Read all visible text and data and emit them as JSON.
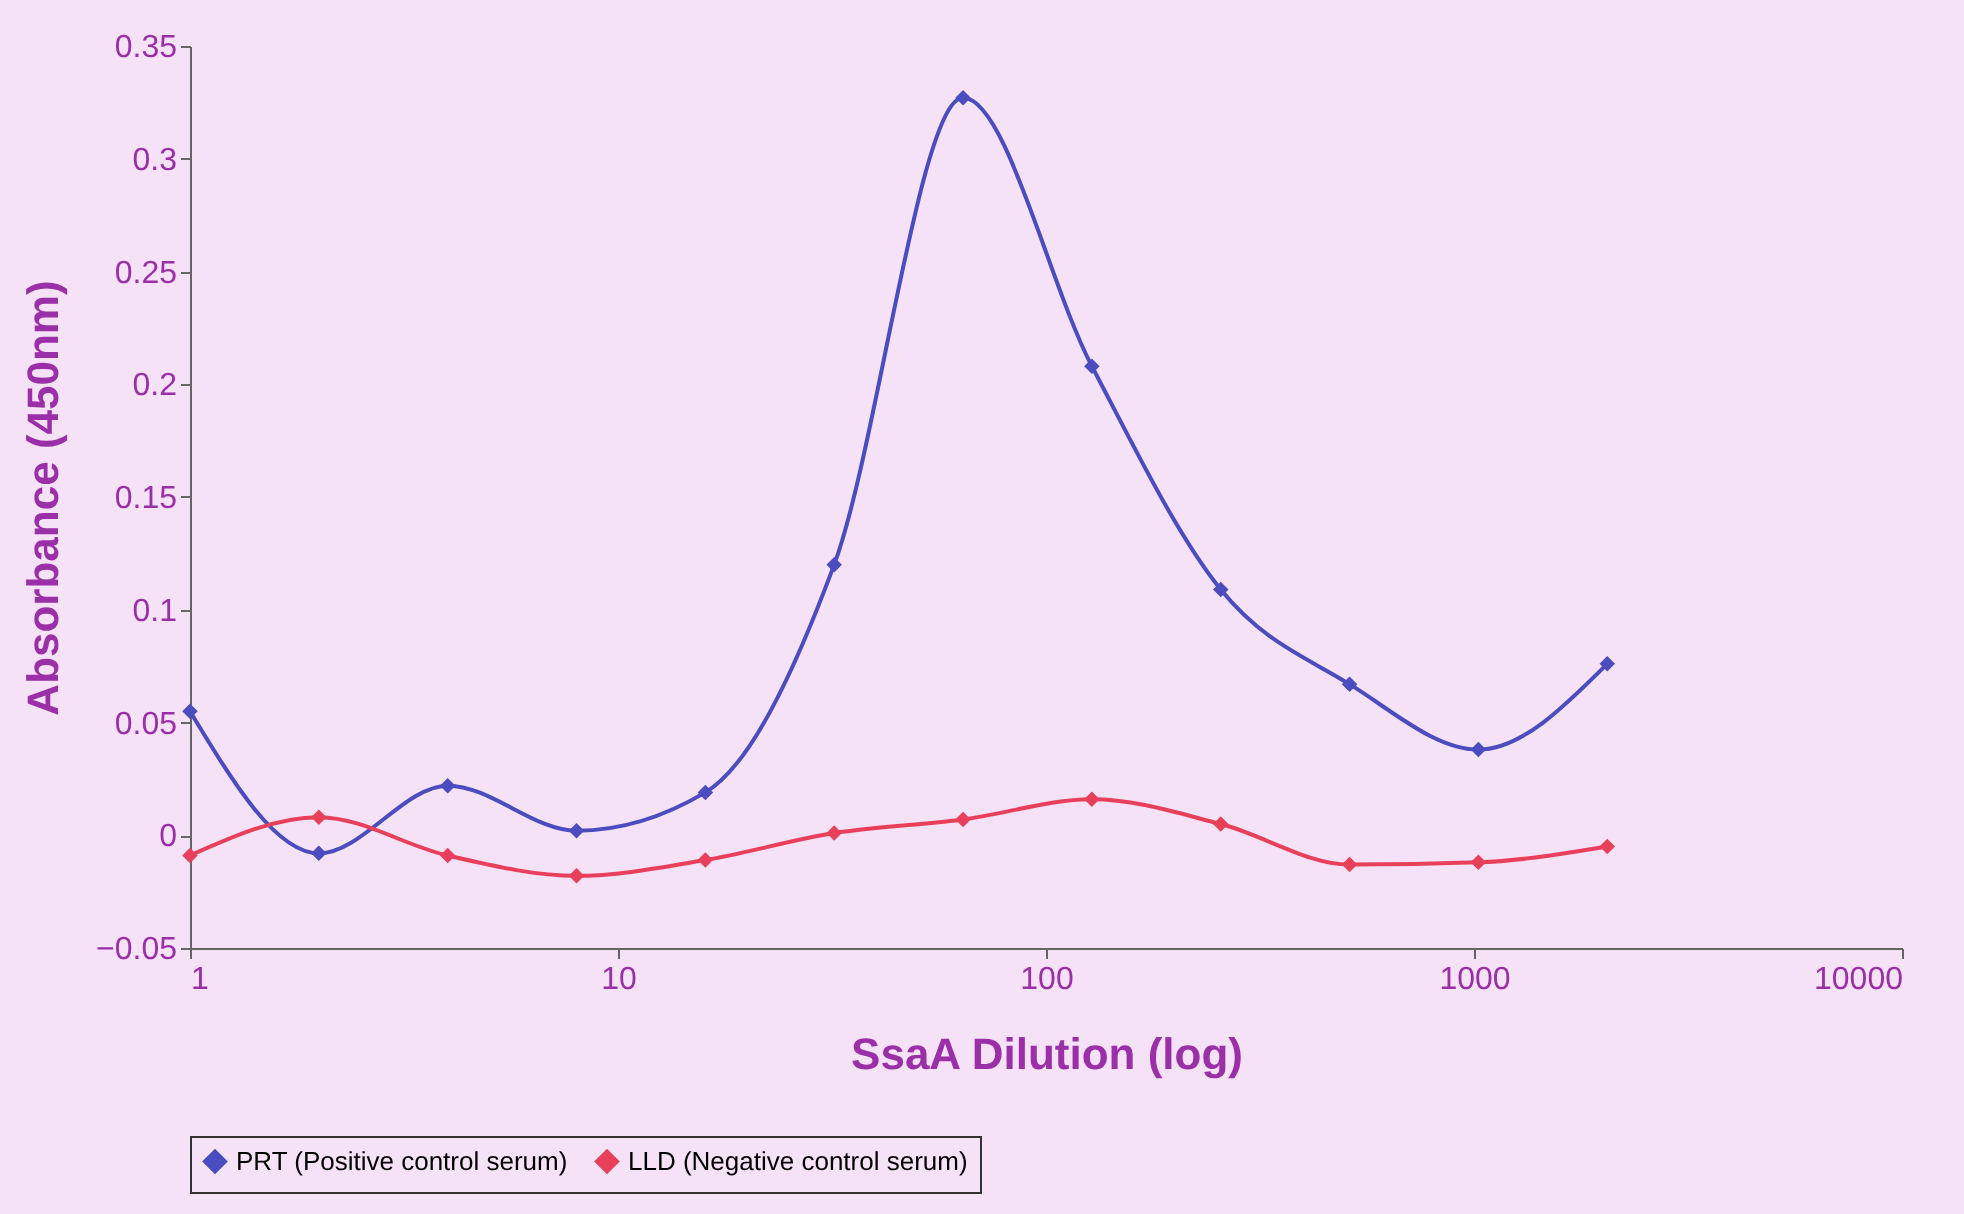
{
  "chart_data": {
    "type": "line",
    "xlabel": "SsaA Dilution (log)",
    "ylabel": "Absorbance (450nm)",
    "log": "x",
    "x": [
      1,
      2,
      4,
      8,
      16,
      32,
      64,
      128,
      256,
      512,
      1024,
      2048
    ],
    "xlim": [
      1,
      10000
    ],
    "xticks": [
      1,
      10,
      100,
      1000,
      10000
    ],
    "ylim": [
      -0.05,
      0.35
    ],
    "yticks": [
      -0.05,
      0,
      0.05,
      0.1,
      0.15,
      0.2,
      0.25,
      0.3,
      0.35
    ],
    "grid": false,
    "legend": "bottom",
    "marker": "diamond",
    "line_style": "solid",
    "series": [
      {
        "name": "PRT (Positive control serum)",
        "color": "#4a4cc0",
        "values": [
          0.055,
          -0.008,
          0.022,
          0.002,
          0.019,
          0.12,
          0.327,
          0.208,
          0.109,
          0.067,
          0.038,
          0.076
        ]
      },
      {
        "name": "LLD (Negative control serum)",
        "color": "#e8405a",
        "values": [
          -0.009,
          0.008,
          -0.009,
          -0.018,
          -0.011,
          0.001,
          0.007,
          0.016,
          0.005,
          -0.013,
          -0.012,
          -0.005
        ]
      }
    ]
  }
}
